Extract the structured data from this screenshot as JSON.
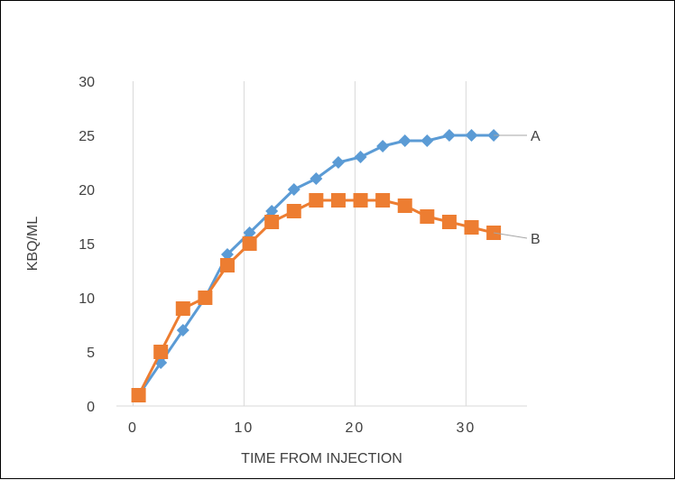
{
  "chart_data": {
    "type": "scatter",
    "xlabel": "TIME FROM INJECTION",
    "ylabel": "KBQ/ML",
    "xlim": [
      -1.5,
      35.5
    ],
    "ylim": [
      0,
      30
    ],
    "x_ticks": [
      "0",
      "10",
      "20",
      "30"
    ],
    "y_ticks": [
      "0",
      "5",
      "10",
      "15",
      "20",
      "25",
      "30"
    ],
    "grid": "vertical",
    "series": [
      {
        "name": "A",
        "color": "#5B9BD5",
        "marker": "diamond",
        "x": [
          0.5,
          2.5,
          4.5,
          6.5,
          8.5,
          10.5,
          12.5,
          14.5,
          16.5,
          18.5,
          20.5,
          22.5,
          24.5,
          26.5,
          28.5,
          30.5,
          32.5
        ],
        "y": [
          1,
          4,
          7,
          10,
          14,
          16,
          18,
          20,
          21,
          22.5,
          23,
          24,
          24.5,
          24.5,
          25,
          25,
          25
        ],
        "label_end": [
          35.5,
          25
        ]
      },
      {
        "name": "B",
        "color": "#ED7D31",
        "marker": "square",
        "x": [
          0.5,
          2.5,
          4.5,
          6.5,
          8.5,
          10.5,
          12.5,
          14.5,
          16.5,
          18.5,
          20.5,
          22.5,
          24.5,
          26.5,
          28.5,
          30.5,
          32.5
        ],
        "y": [
          1,
          5,
          9,
          10,
          13,
          15,
          17,
          18,
          19,
          19,
          19,
          19,
          18.5,
          17.5,
          17,
          16.5,
          16
        ],
        "label_end": [
          35.5,
          15.5
        ]
      }
    ]
  }
}
